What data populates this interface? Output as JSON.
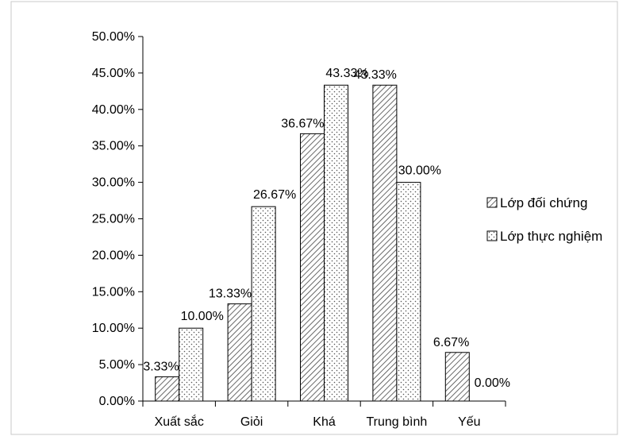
{
  "chart_data": {
    "type": "bar",
    "title": "",
    "xlabel": "",
    "ylabel": "",
    "categories": [
      "Xuất sắc",
      "Giỏi",
      "Khá",
      "Trung bình",
      "Yếu"
    ],
    "series": [
      {
        "name": "Lớp đối chứng",
        "pattern": "diagonal-hatch",
        "values": [
          3.33,
          13.33,
          36.67,
          43.33,
          6.67
        ],
        "labels": [
          "3.33%",
          "13.33%",
          "36.67%",
          "43.33%",
          "6.67%"
        ]
      },
      {
        "name": "Lớp thực nghiệm",
        "pattern": "dots",
        "values": [
          10.0,
          26.67,
          43.33,
          30.0,
          0.0
        ],
        "labels": [
          "10.00%",
          "26.67%",
          "43.33%",
          "30.00%",
          "0.00%"
        ]
      }
    ],
    "ylim": [
      0,
      50
    ],
    "yticks": [
      0,
      5,
      10,
      15,
      20,
      25,
      30,
      35,
      40,
      45,
      50
    ],
    "ytick_labels": [
      "0.00%",
      "5.00%",
      "10.00%",
      "15.00%",
      "20.00%",
      "25.00%",
      "30.00%",
      "35.00%",
      "40.00%",
      "45.00%",
      "50.00%"
    ],
    "grid": false,
    "legend_position": "right",
    "colors": {
      "outline": "#000000",
      "hatch": "#444444",
      "dots": "#555555",
      "background": "#ffffff",
      "border": "#c8c8c8"
    }
  }
}
